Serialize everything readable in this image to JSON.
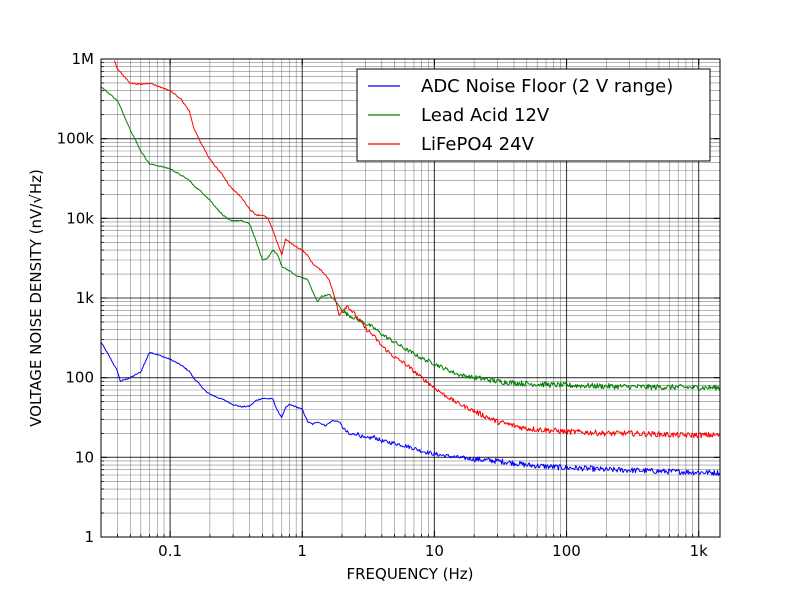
{
  "chart_data": {
    "type": "line",
    "xlabel": "FREQUENCY (Hz)",
    "ylabel": "VOLTAGE NOISE DENSITY (nV/√Hz)",
    "x_scale": "log",
    "y_scale": "log",
    "xlim": [
      0.03,
      1450
    ],
    "ylim": [
      1,
      1000000
    ],
    "grid": true,
    "legend_position": "top-right",
    "x_ticks": [
      {
        "value": 0.1,
        "label": "0.1"
      },
      {
        "value": 1,
        "label": "1"
      },
      {
        "value": 10,
        "label": "10"
      },
      {
        "value": 100,
        "label": "100"
      },
      {
        "value": 1000,
        "label": "1k"
      }
    ],
    "y_ticks": [
      {
        "value": 1,
        "label": "1"
      },
      {
        "value": 10,
        "label": "10"
      },
      {
        "value": 100,
        "label": "100"
      },
      {
        "value": 1000,
        "label": "1k"
      },
      {
        "value": 10000,
        "label": "10k"
      },
      {
        "value": 100000,
        "label": "100k"
      },
      {
        "value": 1000000,
        "label": "1M"
      }
    ],
    "series": [
      {
        "name": "ADC Noise Floor (2 V range)",
        "color": "#0000ff",
        "points": [
          [
            0.03,
            280
          ],
          [
            0.035,
            180
          ],
          [
            0.04,
            120
          ],
          [
            0.042,
            90
          ],
          [
            0.05,
            100
          ],
          [
            0.06,
            118
          ],
          [
            0.07,
            210
          ],
          [
            0.08,
            195
          ],
          [
            0.1,
            170
          ],
          [
            0.12,
            145
          ],
          [
            0.14,
            120
          ],
          [
            0.15,
            100
          ],
          [
            0.17,
            80
          ],
          [
            0.19,
            65
          ],
          [
            0.22,
            58
          ],
          [
            0.26,
            52
          ],
          [
            0.3,
            46
          ],
          [
            0.35,
            43
          ],
          [
            0.4,
            44
          ],
          [
            0.45,
            52
          ],
          [
            0.5,
            55
          ],
          [
            0.6,
            54
          ],
          [
            0.65,
            38
          ],
          [
            0.7,
            32
          ],
          [
            0.75,
            42
          ],
          [
            0.8,
            46
          ],
          [
            0.9,
            43
          ],
          [
            1.0,
            40
          ],
          [
            1.1,
            28
          ],
          [
            1.2,
            26
          ],
          [
            1.3,
            28
          ],
          [
            1.5,
            25
          ],
          [
            1.7,
            29
          ],
          [
            1.9,
            28
          ],
          [
            2.1,
            22
          ],
          [
            2.3,
            19
          ],
          [
            2.6,
            20
          ],
          [
            3.0,
            17
          ],
          [
            3.5,
            18
          ],
          [
            4.0,
            16
          ],
          [
            5.0,
            15
          ],
          [
            6.0,
            14
          ],
          [
            7.0,
            13
          ],
          [
            8.0,
            12
          ],
          [
            10,
            11
          ],
          [
            12,
            10.5
          ],
          [
            15,
            10
          ],
          [
            20,
            9.5
          ],
          [
            25,
            9.2
          ],
          [
            30,
            9
          ],
          [
            40,
            8.5
          ],
          [
            50,
            8
          ],
          [
            70,
            7.7
          ],
          [
            100,
            7.4
          ],
          [
            150,
            7.2
          ],
          [
            200,
            7
          ],
          [
            300,
            6.9
          ],
          [
            500,
            6.7
          ],
          [
            700,
            6.6
          ],
          [
            1000,
            6.5
          ],
          [
            1450,
            6.4
          ]
        ]
      },
      {
        "name": "Lead Acid 12V",
        "color": "#008000",
        "points": [
          [
            0.03,
            450000
          ],
          [
            0.04,
            300000
          ],
          [
            0.05,
            130000
          ],
          [
            0.06,
            70000
          ],
          [
            0.07,
            48000
          ],
          [
            0.08,
            46000
          ],
          [
            0.1,
            42000
          ],
          [
            0.12,
            35000
          ],
          [
            0.14,
            30000
          ],
          [
            0.15,
            26000
          ],
          [
            0.17,
            22000
          ],
          [
            0.2,
            17000
          ],
          [
            0.22,
            14000
          ],
          [
            0.25,
            11000
          ],
          [
            0.28,
            9500
          ],
          [
            0.3,
            9400
          ],
          [
            0.35,
            9300
          ],
          [
            0.4,
            8500
          ],
          [
            0.45,
            5000
          ],
          [
            0.5,
            3000
          ],
          [
            0.55,
            3200
          ],
          [
            0.6,
            4000
          ],
          [
            0.65,
            3500
          ],
          [
            0.7,
            2500
          ],
          [
            0.8,
            2200
          ],
          [
            0.9,
            1900
          ],
          [
            1.0,
            1800
          ],
          [
            1.1,
            1700
          ],
          [
            1.2,
            1200
          ],
          [
            1.3,
            900
          ],
          [
            1.4,
            1050
          ],
          [
            1.6,
            1100
          ],
          [
            1.8,
            900
          ],
          [
            2.0,
            700
          ],
          [
            2.2,
            620
          ],
          [
            2.5,
            560
          ],
          [
            3.0,
            480
          ],
          [
            3.5,
            420
          ],
          [
            4.0,
            350
          ],
          [
            5.0,
            280
          ],
          [
            6.0,
            230
          ],
          [
            7.0,
            200
          ],
          [
            8.0,
            175
          ],
          [
            10,
            150
          ],
          [
            12,
            130
          ],
          [
            15,
            110
          ],
          [
            20,
            100
          ],
          [
            25,
            95
          ],
          [
            30,
            90
          ],
          [
            40,
            86
          ],
          [
            50,
            84
          ],
          [
            70,
            82
          ],
          [
            100,
            80
          ],
          [
            150,
            79
          ],
          [
            200,
            78
          ],
          [
            300,
            77
          ],
          [
            500,
            76
          ],
          [
            700,
            76
          ],
          [
            1000,
            75
          ],
          [
            1450,
            75
          ]
        ]
      },
      {
        "name": "LiFePO4 24V",
        "color": "#ff0000",
        "points": [
          [
            0.038,
            950000
          ],
          [
            0.04,
            750000
          ],
          [
            0.045,
            600000
          ],
          [
            0.05,
            500000
          ],
          [
            0.06,
            480000
          ],
          [
            0.07,
            500000
          ],
          [
            0.08,
            460000
          ],
          [
            0.1,
            400000
          ],
          [
            0.12,
            320000
          ],
          [
            0.14,
            220000
          ],
          [
            0.15,
            140000
          ],
          [
            0.17,
            90000
          ],
          [
            0.2,
            55000
          ],
          [
            0.22,
            45000
          ],
          [
            0.25,
            35000
          ],
          [
            0.28,
            26000
          ],
          [
            0.3,
            23000
          ],
          [
            0.35,
            18000
          ],
          [
            0.4,
            13000
          ],
          [
            0.45,
            11000
          ],
          [
            0.5,
            11000
          ],
          [
            0.55,
            10000
          ],
          [
            0.6,
            7000
          ],
          [
            0.7,
            3500
          ],
          [
            0.75,
            5500
          ],
          [
            0.8,
            5000
          ],
          [
            0.9,
            4400
          ],
          [
            1.0,
            4000
          ],
          [
            1.1,
            3400
          ],
          [
            1.2,
            2700
          ],
          [
            1.4,
            2200
          ],
          [
            1.6,
            1700
          ],
          [
            1.8,
            900
          ],
          [
            1.9,
            600
          ],
          [
            2.0,
            700
          ],
          [
            2.2,
            800
          ],
          [
            2.5,
            620
          ],
          [
            3.0,
            420
          ],
          [
            3.5,
            330
          ],
          [
            4.0,
            250
          ],
          [
            5.0,
            180
          ],
          [
            6.0,
            150
          ],
          [
            7.0,
            120
          ],
          [
            8.0,
            100
          ],
          [
            10,
            75
          ],
          [
            12,
            60
          ],
          [
            15,
            48
          ],
          [
            20,
            38
          ],
          [
            25,
            32
          ],
          [
            30,
            28
          ],
          [
            40,
            25
          ],
          [
            50,
            23
          ],
          [
            70,
            22
          ],
          [
            100,
            21
          ],
          [
            150,
            20.5
          ],
          [
            200,
            20
          ],
          [
            300,
            20
          ],
          [
            500,
            19.5
          ],
          [
            700,
            19
          ],
          [
            1000,
            19
          ],
          [
            1450,
            19
          ]
        ]
      }
    ]
  }
}
